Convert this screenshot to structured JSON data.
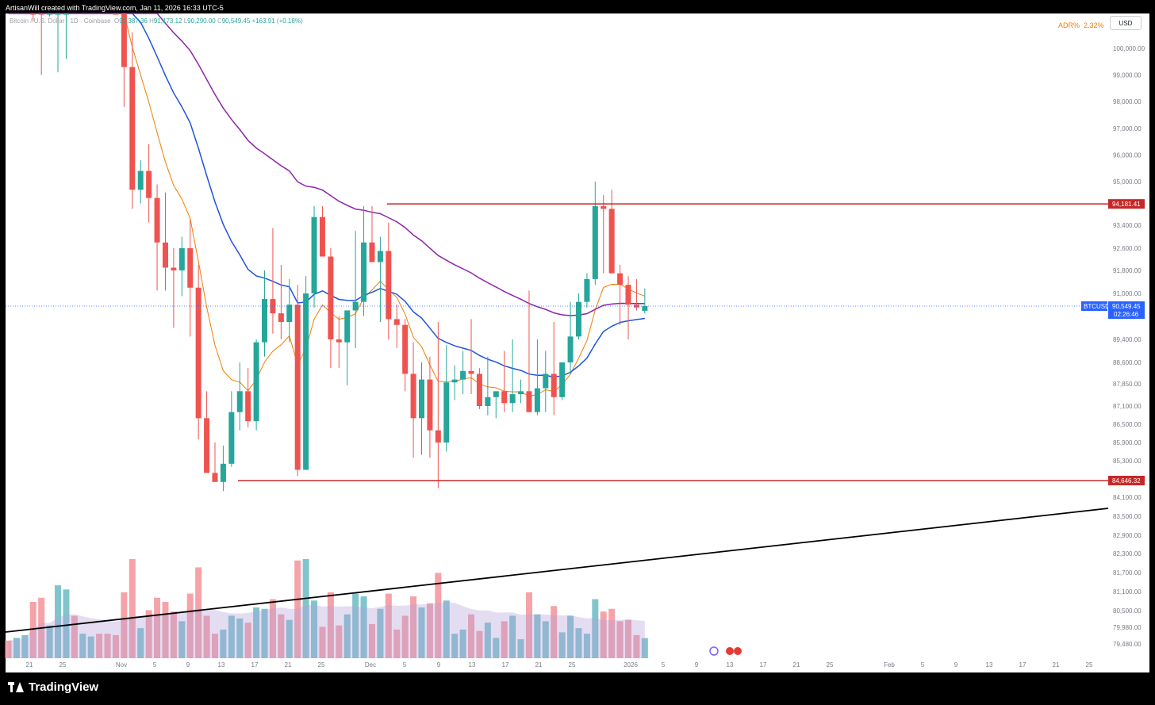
{
  "header": {
    "created_by": "ArtisanWill created with TradingView.com, Jan 11, 2026 16:33 UTC-5",
    "symbol_label": "Bitcoin / U.S. Dollar · 1D · Coinbase",
    "ohlc_open": "90,387.36",
    "ohlc_high": "91,173.12",
    "ohlc_low": "90,290.00",
    "ohlc_close": "90,549.45",
    "ohlc_change": "+163.91 (+0.18%)"
  },
  "indicator": {
    "adr_label": "ADR%",
    "adr_value": "2.32%"
  },
  "currency_button": "USD",
  "footer": {
    "brand": "TradingView"
  },
  "colors": {
    "up": "#26a69a",
    "down": "#ef5350",
    "ema_fast": "#f57c00",
    "ema_mid": "#1e53e5",
    "ema_slow": "#8e24aa",
    "level": "#c62828",
    "trendline": "#000000",
    "price_badge": "#2962ff"
  },
  "chart_data": {
    "type": "candlestick",
    "symbol": "BTCUSD",
    "last_price": "90,549.45",
    "countdown": "02:26:46",
    "y_axis_labels": [
      "100,000.00",
      "99,000.00",
      "98,000.00",
      "97,000.00",
      "96,000.00",
      "95,000.00",
      "93,400.00",
      "92,600.00",
      "91,800.00",
      "91,000.00",
      "89,400.00",
      "88,600.00",
      "87,850.00",
      "87,100.00",
      "86,500.00",
      "85,900.00",
      "85,300.00",
      "84,100.00",
      "83,500.00",
      "82,900.00",
      "82,300.00",
      "81,700.00",
      "81,100.00",
      "80,500.00",
      "79,980.00",
      "79,480.00"
    ],
    "x_axis_labels": [
      "21",
      "25",
      "Nov",
      "5",
      "9",
      "13",
      "17",
      "21",
      "25",
      "Dec",
      "5",
      "9",
      "13",
      "17",
      "21",
      "25",
      "2026",
      "5",
      "9",
      "13",
      "17",
      "21",
      "25",
      "Feb",
      "5",
      "9",
      "13",
      "17",
      "21",
      "25"
    ],
    "levels": [
      {
        "label": "94,181.41",
        "price": 94181.41
      },
      {
        "label": "84,646.32",
        "price": 84646.32
      }
    ],
    "candles": [
      [
        102900,
        103100,
        102400,
        102800
      ],
      [
        102800,
        103500,
        102600,
        103200
      ],
      [
        103200,
        104100,
        103000,
        103900
      ],
      [
        103900,
        104500,
        101000,
        102100
      ],
      [
        102100,
        102800,
        99000,
        101500
      ],
      [
        101500,
        103000,
        101200,
        102700
      ],
      [
        102700,
        103800,
        99100,
        103200
      ],
      [
        103200,
        104000,
        99600,
        103700
      ],
      [
        103700,
        104100,
        101600,
        102000
      ],
      [
        102000,
        102700,
        101500,
        102300
      ],
      [
        102300,
        102900,
        101900,
        102600
      ],
      [
        102600,
        103000,
        101800,
        102100
      ],
      [
        102100,
        102600,
        101400,
        101800
      ],
      [
        101800,
        102400,
        101300,
        101700
      ],
      [
        101700,
        102000,
        97800,
        99300
      ],
      [
        99300,
        100600,
        94000,
        94700
      ],
      [
        94700,
        95800,
        94200,
        95400
      ],
      [
        95400,
        96400,
        93500,
        94400
      ],
      [
        94400,
        94900,
        91100,
        92800
      ],
      [
        92800,
        94600,
        91100,
        91900
      ],
      [
        91900,
        92600,
        89800,
        91800
      ],
      [
        91800,
        93000,
        90900,
        92600
      ],
      [
        92600,
        93600,
        89500,
        91200
      ],
      [
        91200,
        92000,
        86000,
        86700
      ],
      [
        86700,
        87600,
        85100,
        84900
      ],
      [
        84900,
        85900,
        84700,
        84600
      ],
      [
        84600,
        85800,
        84300,
        85200
      ],
      [
        85200,
        87600,
        85100,
        86900
      ],
      [
        86900,
        88600,
        86300,
        87600
      ],
      [
        87600,
        88400,
        86400,
        86600
      ],
      [
        86600,
        89400,
        86300,
        89300
      ],
      [
        89300,
        91800,
        88800,
        90800
      ],
      [
        90800,
        93300,
        89600,
        90300
      ],
      [
        90300,
        92000,
        89400,
        90000
      ],
      [
        90000,
        91500,
        89300,
        90600
      ],
      [
        90600,
        91300,
        84800,
        85000
      ],
      [
        85000,
        91600,
        85000,
        91000
      ],
      [
        91000,
        94100,
        90500,
        93700
      ],
      [
        93700,
        94100,
        92400,
        92300
      ],
      [
        92300,
        92600,
        88400,
        89400
      ],
      [
        89400,
        90200,
        88400,
        89300
      ],
      [
        89300,
        90400,
        87800,
        90400
      ],
      [
        90400,
        93200,
        89100,
        90700
      ],
      [
        90700,
        94100,
        90200,
        92800
      ],
      [
        92800,
        94100,
        92200,
        92100
      ],
      [
        92100,
        93000,
        90000,
        92500
      ],
      [
        92500,
        93500,
        89400,
        90100
      ],
      [
        90100,
        90600,
        89100,
        89900
      ],
      [
        89900,
        90100,
        87600,
        88200
      ],
      [
        88200,
        89300,
        85400,
        86700
      ],
      [
        86700,
        88600,
        85500,
        88000
      ],
      [
        88000,
        88800,
        85400,
        86300
      ],
      [
        86300,
        90000,
        84400,
        85900
      ],
      [
        85900,
        89200,
        85600,
        87900
      ],
      [
        87900,
        88500,
        87300,
        88000
      ],
      [
        88000,
        89000,
        87500,
        88300
      ],
      [
        88300,
        90100,
        87500,
        88200
      ],
      [
        88200,
        88400,
        87000,
        87100
      ],
      [
        87100,
        88800,
        86800,
        87400
      ],
      [
        87400,
        87600,
        86700,
        87600
      ],
      [
        87600,
        89000,
        86900,
        87200
      ],
      [
        87200,
        89400,
        86900,
        87500
      ],
      [
        87500,
        88000,
        87200,
        87600
      ],
      [
        87600,
        91100,
        86900,
        86900
      ],
      [
        86900,
        89400,
        86800,
        87700
      ],
      [
        87700,
        89000,
        86900,
        88200
      ],
      [
        88200,
        90000,
        86800,
        87400
      ],
      [
        87400,
        88600,
        87300,
        88600
      ],
      [
        88600,
        90700,
        88200,
        89500
      ],
      [
        89500,
        91000,
        89400,
        90700
      ],
      [
        90700,
        91700,
        90500,
        91500
      ],
      [
        91500,
        95000,
        91300,
        94100
      ],
      [
        94100,
        94500,
        91700,
        94000
      ],
      [
        94000,
        94700,
        91700,
        91700
      ],
      [
        91700,
        92000,
        89900,
        91300
      ],
      [
        91300,
        91600,
        89400,
        90600
      ],
      [
        90600,
        91500,
        90400,
        90500
      ],
      [
        90387,
        91173,
        90290,
        90549
      ]
    ],
    "volume_ma_note": "purple shaded volume moving average"
  }
}
